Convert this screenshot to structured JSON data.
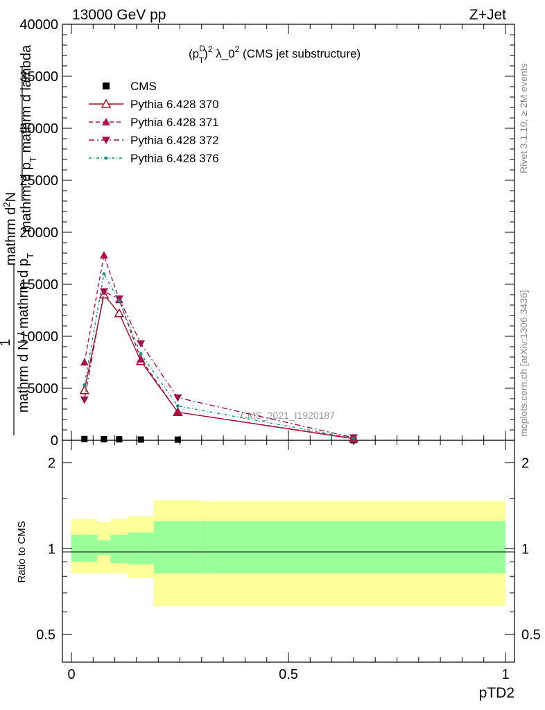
{
  "header": {
    "left": "13000 GeV pp",
    "right": "Z+Jet"
  },
  "side_labels": {
    "rivet": "Rivet 3.1.10, ≥ 2M events",
    "mcplots": "mcplots.cern.ch [arXiv:1306.3436]"
  },
  "watermark": "CMS_2021_I1920187",
  "main_panel": {
    "title_main": "(p",
    "title_sup_D": "D",
    "title_sub_T": "T",
    "title_sup_2": "2",
    "title_rest": " λ_0",
    "title_sup_2b": "2",
    "title_tail": " (CMS jet substructure)",
    "ylabel_line1": "mathrm d",
    "ylabel_line1_sup": "2",
    "ylabel_line1_tail": "N",
    "ylabel_line2": "mathrm d p",
    "ylabel_line2_sub": "T",
    "ylabel_line2_tail": " mathrm d lambda",
    "ylabel_frac_num": "1",
    "ylabel_frac_den": "mathrm d N / mathrm d p",
    "ylabel_frac_den_sub": "T",
    "yticks": [
      "0",
      "5000",
      "10000",
      "15000",
      "20000",
      "25000",
      "30000",
      "35000",
      "40000"
    ]
  },
  "ratio_panel": {
    "ylabel": "Ratio to CMS",
    "yticks": [
      "0.5",
      "1",
      "2"
    ]
  },
  "xaxis": {
    "label": "pTD2",
    "ticks": [
      "0",
      "0.5",
      "1"
    ]
  },
  "legend": [
    {
      "label": "CMS",
      "color": "#000000",
      "marker": "square",
      "dash": "none"
    },
    {
      "label": "Pythia 6.428 370",
      "color": "#a01020",
      "marker": "triangle-up-open",
      "dash": "solid"
    },
    {
      "label": "Pythia 6.428 371",
      "color": "#b0104a",
      "marker": "triangle-up",
      "dash": "dashed"
    },
    {
      "label": "Pythia 6.428 372",
      "color": "#a0104a",
      "marker": "triangle-down",
      "dash": "dashdot"
    },
    {
      "label": "Pythia 6.428 376",
      "color": "#10907a",
      "marker": "dot",
      "dash": "dashdotted-fine"
    }
  ],
  "chart_data": {
    "type": "line",
    "xlabel": "pTD2",
    "ylim": [
      0,
      40000
    ],
    "xlim": [
      -0.02,
      1.0
    ],
    "x": [
      0.03,
      0.075,
      0.11,
      0.16,
      0.245,
      0.65
    ],
    "series": [
      {
        "name": "CMS",
        "values": [
          120,
          100,
          90,
          70,
          60,
          0
        ]
      },
      {
        "name": "Pythia 6.428 370",
        "values": [
          4800,
          14000,
          12200,
          7600,
          2700,
          150
        ]
      },
      {
        "name": "Pythia 6.428 371",
        "values": [
          7500,
          17800,
          13500,
          7800,
          2700,
          200
        ]
      },
      {
        "name": "Pythia 6.428 372",
        "values": [
          3900,
          14300,
          13600,
          9300,
          4100,
          250
        ]
      },
      {
        "name": "Pythia 6.428 376",
        "values": [
          5300,
          16000,
          13400,
          8300,
          3300,
          200
        ]
      }
    ],
    "ratio": {
      "ylim": [
        0.4,
        2.4
      ],
      "log": true,
      "edges": [
        0.0,
        0.06,
        0.09,
        0.13,
        0.19,
        0.3,
        1.0
      ],
      "green_low": [
        0.9,
        0.95,
        0.89,
        0.88,
        0.82,
        0.82
      ],
      "green_high": [
        1.12,
        1.07,
        1.12,
        1.14,
        1.25,
        1.25
      ],
      "yellow_low": [
        0.82,
        0.82,
        0.82,
        0.79,
        0.63,
        0.63
      ],
      "yellow_high": [
        1.27,
        1.24,
        1.27,
        1.3,
        1.48,
        1.47
      ]
    }
  }
}
